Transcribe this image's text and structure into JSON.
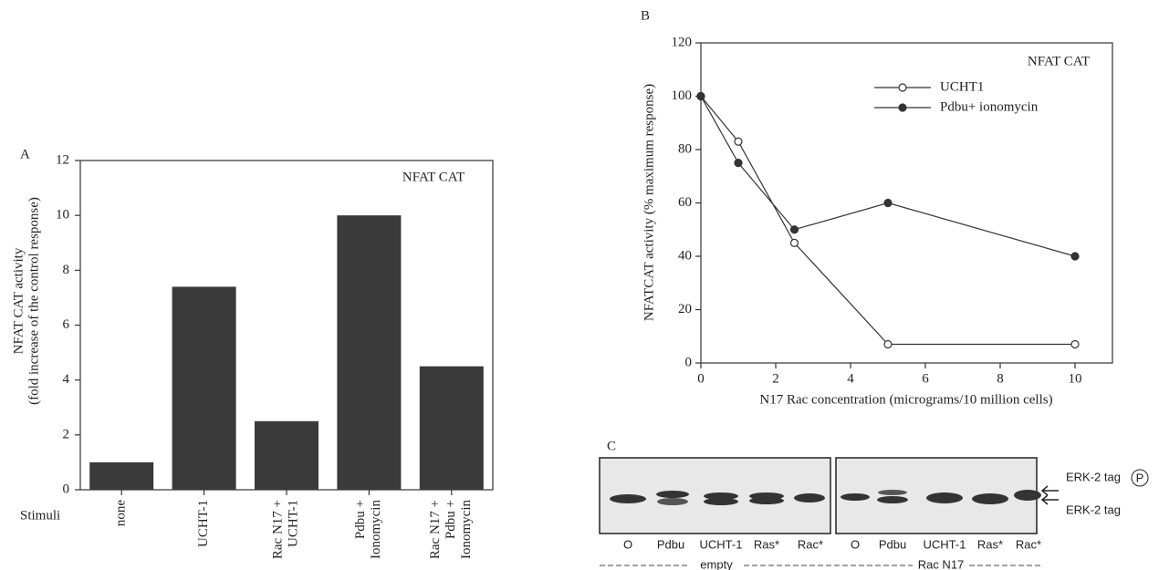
{
  "chart_data": [
    {
      "type": "bar",
      "panel": "A",
      "annotation": "NFAT CAT",
      "y_label": "NFAT CAT activity\n(fold increase of the control response)",
      "x_label": "Stimuli",
      "categories": [
        "none",
        "UCHT-1",
        "Rac N17 +\nUCHT-1",
        "Pdbu +\nIonomycin",
        "Rac N17 +\nPdbu +\nIonomycin"
      ],
      "values": [
        1,
        7.4,
        2.5,
        10,
        4.5
      ],
      "color": "#3a3a3a",
      "ylim": [
        0,
        12
      ],
      "yticks": [
        0,
        2,
        4,
        6,
        8,
        10,
        12
      ]
    },
    {
      "type": "line",
      "panel": "B",
      "annotation": "NFAT CAT",
      "x_label": "N17 Rac concentration (micrograms/10 million cells)",
      "y_label": "NFATCAT activity (% maximum response)",
      "x": [
        0,
        1,
        2.5,
        5,
        10
      ],
      "series": [
        {
          "name": "UCHT1",
          "color": "#333333",
          "marker": "open",
          "values": [
            100,
            83,
            45,
            7,
            7
          ]
        },
        {
          "name": "Pdbu+ ionomycin",
          "color": "#333333",
          "marker": "filled",
          "values": [
            100,
            75,
            50,
            60,
            40
          ]
        }
      ],
      "xlim": [
        0,
        11
      ],
      "xticks": [
        0,
        2,
        4,
        6,
        8,
        10
      ],
      "ylim": [
        0,
        120
      ],
      "yticks": [
        0,
        20,
        40,
        60,
        80,
        100,
        120
      ]
    }
  ],
  "blot": {
    "panel": "C",
    "groups": [
      {
        "label": "empty",
        "lanes": [
          "O",
          "Pdbu",
          "UCHT-1",
          "Ras*",
          "Rac*"
        ]
      },
      {
        "label": "Rac N17",
        "lanes": [
          "O",
          "Pdbu",
          "UCHT-1",
          "Ras*",
          "Rac*"
        ]
      }
    ],
    "band_labels": [
      "ERK-2  tag",
      "ERK-2  tag"
    ],
    "phospho": "P"
  }
}
